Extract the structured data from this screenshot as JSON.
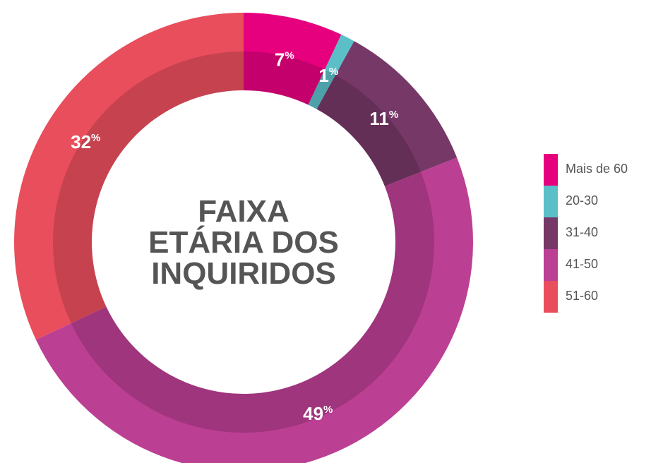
{
  "chart_data": {
    "type": "pie",
    "title": [
      "FAIXA",
      "ETÁRIA DOS",
      "INQUIRIDOS"
    ],
    "categories": [
      "Mais de 60",
      "20-30",
      "31-40",
      "41-50",
      "51-60"
    ],
    "values": [
      7,
      1,
      11,
      49,
      32
    ],
    "unit": "%",
    "colors": [
      "#e6007e",
      "#5bbfc8",
      "#763867",
      "#bb3f93",
      "#e94e5d"
    ],
    "legend": "right"
  }
}
